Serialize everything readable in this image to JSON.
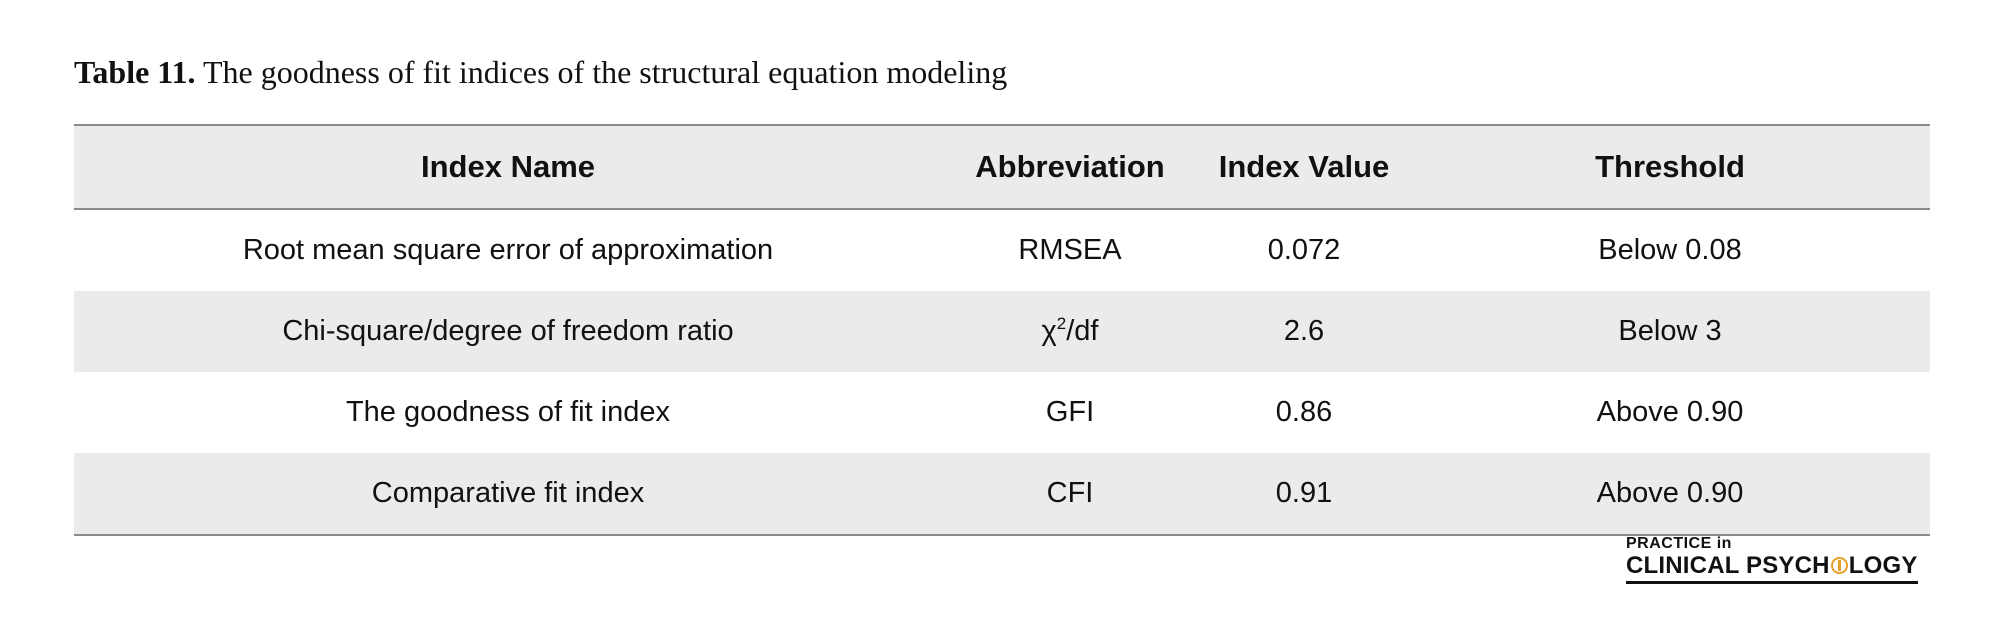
{
  "caption": {
    "label": "Table 11.",
    "text": "The goodness of fit indices of the structural equation modeling"
  },
  "table": {
    "headers": [
      "Index Name",
      "Abbreviation",
      "Index Value",
      "Threshold"
    ],
    "rows": [
      {
        "name": "Root mean square error of approximation",
        "abbr": "RMSEA",
        "value": "0.072",
        "threshold": "Below 0.08"
      },
      {
        "name": "Chi-square/degree of freedom ratio",
        "abbr_base": "χ",
        "abbr_sup": "2",
        "abbr_rest": "/df",
        "value": "2.6",
        "threshold": "Below 3"
      },
      {
        "name": "The goodness of fit index",
        "abbr": "GFI",
        "value": "0.86",
        "threshold": "Above 0.90"
      },
      {
        "name": "Comparative fit index",
        "abbr": "CFI",
        "value": "0.91",
        "threshold": "Above 0.90"
      }
    ],
    "header_bg": "#ebebeb",
    "rule_color": "#8a8a8a"
  },
  "logo": {
    "line1": "PRACTICE in",
    "line2_a": "CLINICAL PSYCH",
    "line2_b": "LOGY",
    "icon": "brain-circle-icon",
    "accent": "#e6a12b"
  }
}
